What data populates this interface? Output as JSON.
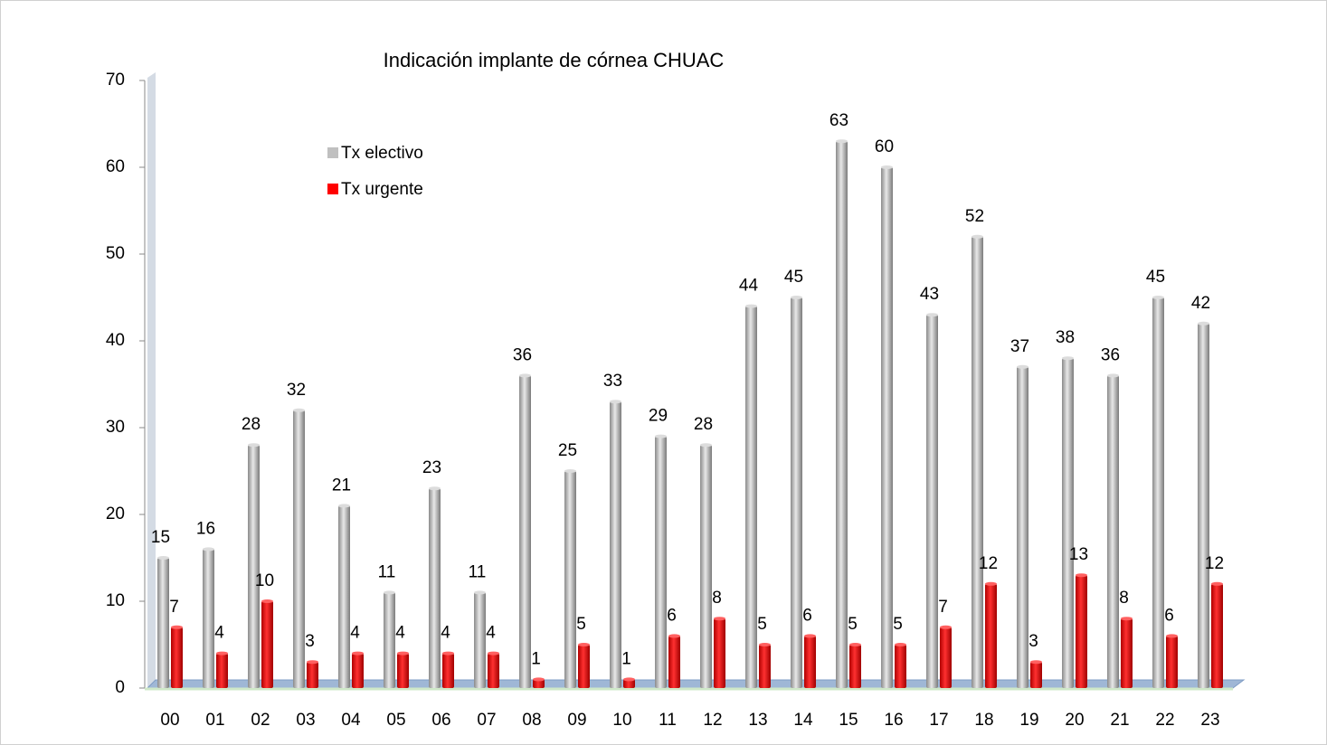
{
  "chart_data": {
    "type": "bar",
    "title": "Indicación implante de córnea CHUAC",
    "categories": [
      "00",
      "01",
      "02",
      "03",
      "04",
      "05",
      "06",
      "07",
      "08",
      "09",
      "10",
      "11",
      "12",
      "13",
      "14",
      "15",
      "16",
      "17",
      "18",
      "19",
      "20",
      "21",
      "22",
      "23"
    ],
    "series": [
      {
        "name": "Tx electivo",
        "color": "#c0c0c0",
        "values": [
          15,
          16,
          28,
          32,
          21,
          11,
          23,
          11,
          36,
          25,
          33,
          29,
          28,
          44,
          45,
          63,
          60,
          43,
          52,
          37,
          38,
          36,
          45,
          42
        ]
      },
      {
        "name": "Tx urgente",
        "color": "#ff0000",
        "values": [
          7,
          4,
          10,
          3,
          4,
          4,
          4,
          4,
          1,
          5,
          1,
          6,
          8,
          5,
          6,
          5,
          5,
          7,
          12,
          3,
          13,
          8,
          6,
          12
        ]
      }
    ],
    "ylim": [
      0,
      70
    ],
    "yticks": [
      0,
      10,
      20,
      30,
      40,
      50,
      60,
      70
    ]
  }
}
